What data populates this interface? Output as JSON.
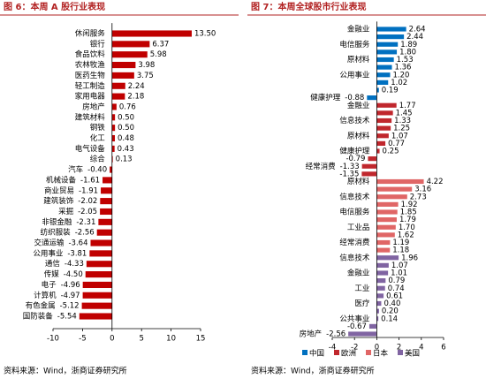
{
  "chart_data": [
    {
      "type": "bar",
      "title": "图 6：本周 A 股行业表现",
      "source": "资料来源：Wind，浙商证券研究所",
      "color": "#c00000",
      "categories": [
        "休闲服务",
        "银行",
        "食品饮料",
        "农林牧渔",
        "医药生物",
        "轻工制造",
        "家用电器",
        "房地产",
        "建筑材料",
        "钢铁",
        "化工",
        "电气设备",
        "综合",
        "汽车",
        "机械设备",
        "商业贸易",
        "建筑装饰",
        "采掘",
        "非银金融",
        "纺织服装",
        "交通运输",
        "公用事业",
        "通信",
        "传媒",
        "电子",
        "计算机",
        "有色金属",
        "国防装备"
      ],
      "values": [
        13.5,
        6.37,
        5.98,
        3.98,
        3.75,
        2.24,
        2.18,
        0.76,
        0.5,
        0.5,
        0.48,
        0.43,
        0.13,
        -0.4,
        -1.61,
        -1.91,
        -2.02,
        -2.05,
        -2.31,
        -2.56,
        -3.64,
        -3.81,
        -4.33,
        -4.5,
        -4.96,
        -4.97,
        -5.12,
        -5.54
      ],
      "value_labels": [
        "13.50",
        "6.37",
        "5.98",
        "3.98",
        "3.75",
        "2.24",
        "2.18",
        "0.76",
        "0.50",
        "0.50",
        "0.48",
        "0.43",
        "0.13",
        "-0.40",
        "-1.61",
        "-1.91",
        "-2.02",
        "-2.05",
        "-2.31",
        "-2.56",
        "-3.64",
        "-3.81",
        "-4.33",
        "-4.50",
        "-4.96",
        "-4.97",
        "-5.12",
        "-5.54"
      ],
      "xlim": [
        -10,
        15
      ],
      "xticks": [
        -10,
        -5,
        0,
        5,
        10,
        15
      ]
    },
    {
      "type": "bar",
      "title": "图 7：本周全球股市行业表现",
      "source": "资料来源：Wind，浙商证券研究所",
      "series": [
        {
          "name": "中国",
          "color": "#0070c0",
          "categories": [
            "金融业",
            null,
            "电信服务",
            null,
            "原材料",
            null,
            "公用事业",
            null,
            null,
            "健康护理"
          ],
          "values": [
            2.64,
            2.44,
            1.89,
            1.8,
            1.53,
            1.36,
            1.2,
            1.02,
            0.19,
            -0.88
          ],
          "value_labels": [
            "2.64",
            "2.44",
            "1.89",
            "1.80",
            "1.53",
            "1.36",
            "1.20",
            "1.02",
            "0.19",
            "-0.88"
          ]
        },
        {
          "name": "欧洲",
          "color": "#c0272d",
          "categories": [
            "金融业",
            null,
            "信息技术",
            null,
            "原材料",
            null,
            "健康护理",
            null,
            "经常消费",
            null
          ],
          "values": [
            1.77,
            1.45,
            1.33,
            1.25,
            1.07,
            0.77,
            0.25,
            -0.79,
            -1.33,
            -1.35
          ],
          "value_labels": [
            "1.77",
            "1.45",
            "1.33",
            "1.25",
            "1.07",
            "0.77",
            "0.25",
            "-0.79",
            "-1.33",
            "-1.35"
          ]
        },
        {
          "name": "日本",
          "color": "#e06666",
          "categories": [
            "原材料",
            null,
            "信息技术",
            null,
            "电信服务",
            null,
            "工业品",
            null,
            "经常消费",
            null
          ],
          "values": [
            4.22,
            3.16,
            2.73,
            1.92,
            1.85,
            1.79,
            1.7,
            1.62,
            1.19,
            1.18
          ],
          "value_labels": [
            "4.22",
            "3.16",
            "2.73",
            "1.92",
            "1.85",
            "1.79",
            "1.70",
            "1.62",
            "1.19",
            "1.18"
          ]
        },
        {
          "name": "美国",
          "color": "#8064a2",
          "categories": [
            "信息技术",
            null,
            "金融业",
            null,
            "工业",
            null,
            "医疗",
            null,
            "公共事业",
            null,
            "房地产"
          ],
          "values": [
            1.96,
            1.07,
            1.01,
            0.79,
            0.74,
            0.61,
            0.4,
            0.2,
            0.14,
            -0.67,
            -2.56
          ],
          "value_labels": [
            "1.96",
            "1.07",
            "1.01",
            "0.79",
            "0.74",
            "0.61",
            "0.40",
            "0.20",
            "0.14",
            "-0.67",
            "-2.56"
          ]
        }
      ],
      "xlim": [
        -4,
        6
      ],
      "xticks": [
        -4,
        -2,
        0,
        2,
        4,
        6
      ]
    }
  ]
}
